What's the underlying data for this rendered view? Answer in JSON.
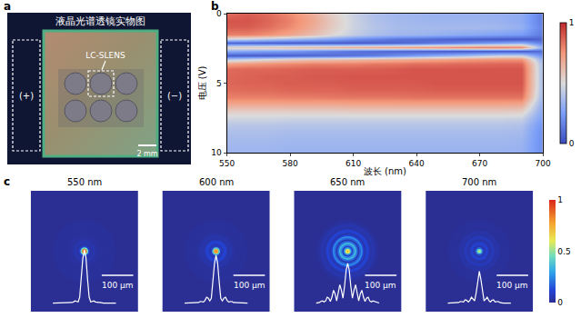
{
  "photo": {
    "panel": "a",
    "title": "液晶光谱透镜实物图",
    "device_label": "LC-SLENS",
    "electrode_labels": [
      "(+)",
      "(−)"
    ],
    "scale_bar": "2 mm"
  },
  "chart_data": [
    {
      "panel": "b",
      "type": "heatmap",
      "xlabel": "波长 (nm)",
      "ylabel": "电压 (V)",
      "x": [
        550,
        560,
        570,
        580,
        590,
        600,
        610,
        620,
        630,
        640,
        650,
        660,
        670,
        680,
        690,
        700
      ],
      "y": [
        0,
        0.5,
        1,
        1.5,
        1.8,
        2.1,
        2.4,
        2.7,
        3,
        3.3,
        3.6,
        4,
        4.5,
        5,
        5.5,
        6,
        6.5,
        7,
        7.5,
        8,
        8.5,
        9,
        9.5,
        10
      ],
      "z": [
        [
          0.85,
          0.88,
          0.85,
          0.78,
          0.68,
          0.55,
          0.45,
          0.38,
          0.35,
          0.34,
          0.33,
          0.33,
          0.33,
          0.32,
          0.3,
          0.15
        ],
        [
          0.9,
          0.9,
          0.86,
          0.8,
          0.7,
          0.57,
          0.46,
          0.39,
          0.36,
          0.35,
          0.34,
          0.34,
          0.34,
          0.33,
          0.3,
          0.15
        ],
        [
          0.88,
          0.88,
          0.84,
          0.78,
          0.68,
          0.56,
          0.46,
          0.4,
          0.37,
          0.36,
          0.36,
          0.36,
          0.36,
          0.35,
          0.32,
          0.16
        ],
        [
          0.8,
          0.8,
          0.76,
          0.7,
          0.62,
          0.52,
          0.44,
          0.38,
          0.35,
          0.34,
          0.32,
          0.3,
          0.28,
          0.26,
          0.24,
          0.14
        ],
        [
          0.45,
          0.42,
          0.38,
          0.34,
          0.3,
          0.26,
          0.2,
          0.16,
          0.12,
          0.1,
          0.08,
          0.06,
          0.05,
          0.04,
          0.04,
          0.08
        ],
        [
          0.08,
          0.07,
          0.06,
          0.05,
          0.05,
          0.05,
          0.05,
          0.06,
          0.08,
          0.1,
          0.14,
          0.18,
          0.22,
          0.26,
          0.3,
          0.15
        ],
        [
          0.55,
          0.58,
          0.6,
          0.62,
          0.64,
          0.66,
          0.68,
          0.7,
          0.72,
          0.74,
          0.76,
          0.78,
          0.8,
          0.8,
          0.78,
          0.3
        ],
        [
          0.3,
          0.28,
          0.26,
          0.24,
          0.2,
          0.16,
          0.12,
          0.1,
          0.08,
          0.06,
          0.05,
          0.04,
          0.04,
          0.04,
          0.04,
          0.1
        ],
        [
          0.05,
          0.05,
          0.05,
          0.06,
          0.08,
          0.1,
          0.12,
          0.15,
          0.2,
          0.25,
          0.3,
          0.35,
          0.4,
          0.45,
          0.45,
          0.2
        ],
        [
          0.4,
          0.45,
          0.5,
          0.55,
          0.58,
          0.6,
          0.62,
          0.64,
          0.66,
          0.68,
          0.7,
          0.72,
          0.74,
          0.75,
          0.75,
          0.3
        ],
        [
          0.72,
          0.74,
          0.76,
          0.78,
          0.8,
          0.8,
          0.8,
          0.82,
          0.82,
          0.84,
          0.84,
          0.85,
          0.85,
          0.86,
          0.86,
          0.35
        ],
        [
          0.85,
          0.86,
          0.86,
          0.87,
          0.88,
          0.88,
          0.88,
          0.88,
          0.89,
          0.9,
          0.9,
          0.9,
          0.9,
          0.9,
          0.9,
          0.35
        ],
        [
          0.86,
          0.87,
          0.88,
          0.88,
          0.89,
          0.89,
          0.9,
          0.9,
          0.9,
          0.9,
          0.9,
          0.9,
          0.9,
          0.9,
          0.9,
          0.35
        ],
        [
          0.86,
          0.87,
          0.87,
          0.88,
          0.88,
          0.88,
          0.89,
          0.89,
          0.89,
          0.89,
          0.9,
          0.9,
          0.9,
          0.9,
          0.9,
          0.35
        ],
        [
          0.84,
          0.85,
          0.85,
          0.86,
          0.86,
          0.86,
          0.87,
          0.87,
          0.87,
          0.87,
          0.88,
          0.88,
          0.88,
          0.88,
          0.88,
          0.35
        ],
        [
          0.8,
          0.8,
          0.8,
          0.81,
          0.81,
          0.82,
          0.82,
          0.82,
          0.82,
          0.83,
          0.83,
          0.83,
          0.83,
          0.83,
          0.83,
          0.33
        ],
        [
          0.7,
          0.7,
          0.7,
          0.7,
          0.7,
          0.7,
          0.71,
          0.71,
          0.71,
          0.71,
          0.71,
          0.71,
          0.71,
          0.71,
          0.7,
          0.3
        ],
        [
          0.56,
          0.56,
          0.56,
          0.56,
          0.56,
          0.56,
          0.57,
          0.57,
          0.57,
          0.57,
          0.57,
          0.57,
          0.57,
          0.57,
          0.56,
          0.28
        ],
        [
          0.47,
          0.47,
          0.47,
          0.46,
          0.46,
          0.46,
          0.46,
          0.46,
          0.46,
          0.46,
          0.46,
          0.46,
          0.46,
          0.46,
          0.45,
          0.25
        ],
        [
          0.41,
          0.41,
          0.41,
          0.4,
          0.4,
          0.4,
          0.4,
          0.4,
          0.4,
          0.4,
          0.4,
          0.4,
          0.4,
          0.4,
          0.39,
          0.22
        ],
        [
          0.38,
          0.38,
          0.38,
          0.37,
          0.37,
          0.37,
          0.37,
          0.37,
          0.37,
          0.37,
          0.37,
          0.37,
          0.37,
          0.37,
          0.36,
          0.2
        ],
        [
          0.36,
          0.36,
          0.36,
          0.35,
          0.35,
          0.35,
          0.35,
          0.35,
          0.35,
          0.35,
          0.35,
          0.35,
          0.35,
          0.35,
          0.34,
          0.2
        ],
        [
          0.35,
          0.35,
          0.35,
          0.34,
          0.34,
          0.34,
          0.34,
          0.34,
          0.34,
          0.34,
          0.34,
          0.34,
          0.34,
          0.34,
          0.33,
          0.2
        ],
        [
          0.34,
          0.34,
          0.34,
          0.33,
          0.33,
          0.33,
          0.33,
          0.33,
          0.33,
          0.33,
          0.33,
          0.33,
          0.33,
          0.33,
          0.32,
          0.2
        ]
      ],
      "xlim": [
        550,
        700
      ],
      "ylim": [
        10,
        0
      ],
      "xticks": [
        550,
        580,
        610,
        640,
        670,
        700
      ],
      "yticks": [
        0,
        5,
        10
      ],
      "colorbar": {
        "range": [
          0,
          1
        ],
        "ticks": [
          0,
          1
        ]
      }
    },
    {
      "panel": "c",
      "type": "focal_spots",
      "tick_labels": false,
      "colorbar": {
        "range": [
          0,
          1
        ],
        "ticks": [
          0,
          0.5,
          1
        ]
      },
      "spots": [
        {
          "label": "550 nm",
          "xlim": [
            -170,
            170
          ],
          "ylim": [
            -192,
            192
          ],
          "scale_bar": {
            "length": 100,
            "label": "100 µm"
          },
          "profile": {
            "r": [
              0,
              5,
              10,
              15,
              20,
              25,
              30,
              35,
              40,
              45,
              50,
              55,
              60,
              65,
              70,
              75,
              80,
              85,
              90,
              95,
              100
            ],
            "values": [
              1.0,
              0.85,
              0.45,
              0.12,
              0.03,
              0.04,
              0.05,
              0.03,
              0.02,
              0.02,
              0.02,
              0.01,
              0.01,
              0.01,
              0.01,
              0.01,
              0.01,
              0.01,
              0.01,
              0.01,
              0.01
            ],
            "ylim": [
              -0.15,
              2.1
            ]
          }
        },
        {
          "label": "600 nm",
          "xlim": [
            -170,
            170
          ],
          "ylim": [
            -192,
            192
          ],
          "scale_bar": {
            "length": 100,
            "label": "100 µm"
          },
          "profile": {
            "r": [
              0,
              5,
              10,
              15,
              20,
              25,
              30,
              35,
              40,
              45,
              50,
              55,
              60,
              65,
              70,
              75,
              80,
              85,
              90,
              95,
              100
            ],
            "values": [
              0.9,
              0.75,
              0.4,
              0.1,
              0.05,
              0.1,
              0.12,
              0.06,
              0.03,
              0.04,
              0.04,
              0.02,
              0.02,
              0.01,
              0.01,
              0.01,
              0.01,
              0.01,
              0.01,
              0.01,
              0.01
            ],
            "ylim": [
              -0.15,
              2.1
            ]
          }
        },
        {
          "label": "650 nm",
          "xlim": [
            -170,
            170
          ],
          "ylim": [
            -192,
            192
          ],
          "scale_bar": {
            "length": 100,
            "label": "100 µm"
          },
          "profile": {
            "r": [
              0,
              5,
              10,
              15,
              20,
              25,
              30,
              35,
              40,
              45,
              50,
              55,
              60,
              65,
              70,
              75,
              80,
              85,
              90,
              95,
              100
            ],
            "values": [
              0.75,
              0.62,
              0.32,
              0.1,
              0.25,
              0.35,
              0.2,
              0.05,
              0.18,
              0.25,
              0.12,
              0.04,
              0.1,
              0.12,
              0.05,
              0.03,
              0.05,
              0.04,
              0.02,
              0.01,
              0.01
            ],
            "ylim": [
              -0.15,
              2.1
            ]
          }
        },
        {
          "label": "700 nm",
          "xlim": [
            -170,
            170
          ],
          "ylim": [
            -192,
            192
          ],
          "scale_bar": {
            "length": 100,
            "label": "100 µm"
          },
          "profile": {
            "r": [
              0,
              5,
              10,
              15,
              20,
              25,
              30,
              35,
              40,
              45,
              50,
              55,
              60,
              65,
              70,
              75,
              80,
              85,
              90,
              95,
              100
            ],
            "values": [
              0.6,
              0.45,
              0.2,
              0.05,
              0.08,
              0.12,
              0.06,
              0.03,
              0.06,
              0.07,
              0.03,
              0.03,
              0.04,
              0.02,
              0.01,
              0.01,
              0.01,
              0.01,
              0.01,
              0.01,
              0.01
            ],
            "ylim": [
              -0.15,
              2.1
            ]
          }
        }
      ]
    }
  ]
}
